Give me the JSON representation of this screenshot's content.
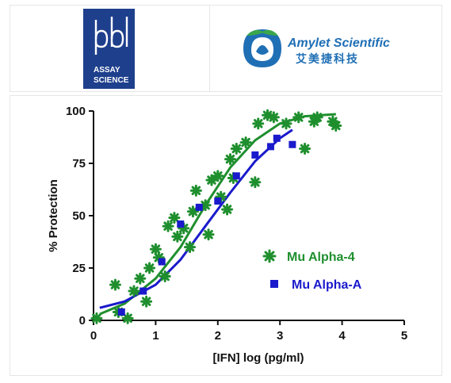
{
  "logos": {
    "pbl": {
      "mark": "pbl",
      "line1": "ASSAY",
      "line2": "SCIENCE",
      "color": "#1e3f8c"
    },
    "amylet": {
      "name": "Amylet Scientific",
      "chinese": "艾美捷科技",
      "color": "#1f6fb5",
      "accent": "#3aa64a"
    }
  },
  "chart_data": {
    "type": "scatter",
    "xlabel": "[IFN] log (pg/ml)",
    "ylabel": "% Protection",
    "xlim": [
      0,
      5
    ],
    "ylim": [
      0,
      100
    ],
    "xticks": [
      "0",
      "1",
      "2",
      "3",
      "4",
      "5"
    ],
    "yticks": [
      "0",
      "25",
      "50",
      "75",
      "100"
    ],
    "grid": false,
    "legend_position": "center-right",
    "series": [
      {
        "name": "Mu Alpha-4",
        "marker": "star",
        "color": "#1f8f2e",
        "points": [
          [
            0.05,
            1
          ],
          [
            0.35,
            17
          ],
          [
            0.4,
            4
          ],
          [
            0.55,
            1
          ],
          [
            0.65,
            14
          ],
          [
            0.75,
            20
          ],
          [
            0.85,
            9
          ],
          [
            0.9,
            25
          ],
          [
            1.0,
            34
          ],
          [
            1.05,
            30
          ],
          [
            1.15,
            21
          ],
          [
            1.2,
            45
          ],
          [
            1.3,
            49
          ],
          [
            1.35,
            40
          ],
          [
            1.45,
            44
          ],
          [
            1.55,
            35
          ],
          [
            1.6,
            52
          ],
          [
            1.65,
            62
          ],
          [
            1.8,
            55
          ],
          [
            1.85,
            41
          ],
          [
            1.9,
            67
          ],
          [
            2.0,
            69
          ],
          [
            2.05,
            59
          ],
          [
            2.15,
            53
          ],
          [
            2.2,
            77
          ],
          [
            2.25,
            68
          ],
          [
            2.3,
            82
          ],
          [
            2.45,
            85
          ],
          [
            2.6,
            66
          ],
          [
            2.65,
            94
          ],
          [
            2.8,
            98
          ],
          [
            2.9,
            97
          ],
          [
            3.1,
            94
          ],
          [
            3.3,
            97
          ],
          [
            3.4,
            82
          ],
          [
            3.55,
            95
          ],
          [
            3.6,
            97
          ],
          [
            3.85,
            95
          ],
          [
            3.9,
            93
          ]
        ],
        "fit": [
          [
            0.1,
            3
          ],
          [
            0.5,
            8
          ],
          [
            1.0,
            20
          ],
          [
            1.4,
            35
          ],
          [
            1.8,
            55
          ],
          [
            2.2,
            73
          ],
          [
            2.6,
            86
          ],
          [
            3.0,
            94
          ],
          [
            3.4,
            97.5
          ],
          [
            3.9,
            98.5
          ]
        ]
      },
      {
        "name": "Mu Alpha-A",
        "marker": "square",
        "color": "#1a1acc",
        "points": [
          [
            0.45,
            4
          ],
          [
            0.8,
            14
          ],
          [
            1.1,
            28
          ],
          [
            1.4,
            46
          ],
          [
            1.7,
            54
          ],
          [
            2.0,
            57
          ],
          [
            2.3,
            69
          ],
          [
            2.6,
            79
          ],
          [
            2.85,
            83
          ],
          [
            2.95,
            87
          ],
          [
            3.2,
            84
          ]
        ],
        "fit": [
          [
            0.1,
            6
          ],
          [
            0.5,
            9
          ],
          [
            1.0,
            17
          ],
          [
            1.4,
            29
          ],
          [
            1.8,
            45
          ],
          [
            2.2,
            61
          ],
          [
            2.6,
            76
          ],
          [
            3.0,
            87
          ],
          [
            3.2,
            91
          ]
        ]
      }
    ]
  }
}
